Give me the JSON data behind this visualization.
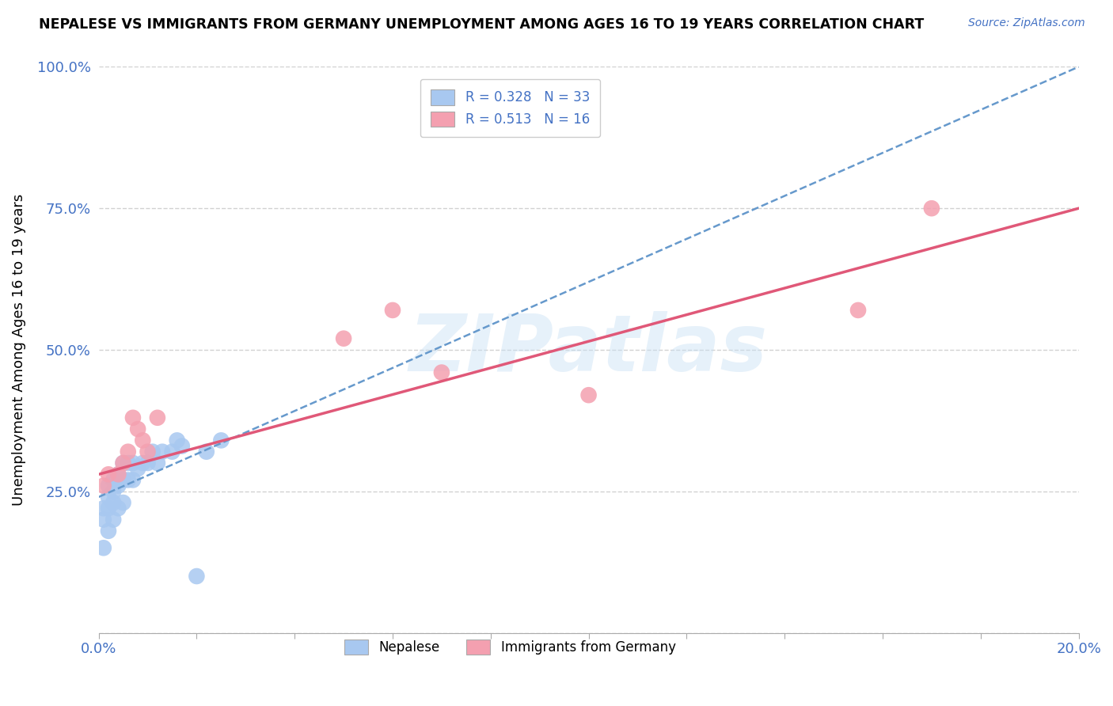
{
  "title": "NEPALESE VS IMMIGRANTS FROM GERMANY UNEMPLOYMENT AMONG AGES 16 TO 19 YEARS CORRELATION CHART",
  "source": "Source: ZipAtlas.com",
  "ylabel": "Unemployment Among Ages 16 to 19 years",
  "xlim": [
    0,
    0.2
  ],
  "ylim": [
    0,
    1.0
  ],
  "xticks": [
    0.0,
    0.02,
    0.04,
    0.06,
    0.08,
    0.1,
    0.12,
    0.14,
    0.16,
    0.18,
    0.2
  ],
  "yticks": [
    0.0,
    0.25,
    0.5,
    0.75,
    1.0
  ],
  "nepalese_color": "#a8c8f0",
  "germany_color": "#f4a0b0",
  "nepalese_line_color": "#6699cc",
  "germany_line_color": "#e05878",
  "nepalese_R": 0.328,
  "nepalese_N": 33,
  "germany_R": 0.513,
  "germany_N": 16,
  "background_color": "#ffffff",
  "grid_color": "#cccccc",
  "watermark": "ZIPatlas",
  "tick_color": "#4472c4",
  "nepalese_x": [
    0.001,
    0.001,
    0.001,
    0.002,
    0.002,
    0.002,
    0.002,
    0.003,
    0.003,
    0.003,
    0.003,
    0.004,
    0.004,
    0.004,
    0.005,
    0.005,
    0.005,
    0.006,
    0.006,
    0.007,
    0.007,
    0.008,
    0.009,
    0.01,
    0.011,
    0.012,
    0.013,
    0.015,
    0.016,
    0.017,
    0.02,
    0.022,
    0.025
  ],
  "nepalese_y": [
    0.15,
    0.2,
    0.22,
    0.18,
    0.22,
    0.24,
    0.26,
    0.2,
    0.23,
    0.25,
    0.27,
    0.22,
    0.26,
    0.28,
    0.23,
    0.27,
    0.3,
    0.27,
    0.3,
    0.27,
    0.3,
    0.29,
    0.3,
    0.3,
    0.32,
    0.3,
    0.32,
    0.32,
    0.34,
    0.33,
    0.1,
    0.32,
    0.34
  ],
  "germany_x": [
    0.001,
    0.002,
    0.004,
    0.005,
    0.006,
    0.007,
    0.008,
    0.009,
    0.01,
    0.012,
    0.05,
    0.06,
    0.07,
    0.1,
    0.155,
    0.17
  ],
  "germany_y": [
    0.26,
    0.28,
    0.28,
    0.3,
    0.32,
    0.38,
    0.36,
    0.34,
    0.32,
    0.38,
    0.52,
    0.57,
    0.46,
    0.42,
    0.57,
    0.75
  ],
  "nepalese_line_x0": 0.0,
  "nepalese_line_y0": 0.24,
  "nepalese_line_x1": 0.2,
  "nepalese_line_y1": 1.0,
  "germany_line_x0": 0.0,
  "germany_line_y0": 0.28,
  "germany_line_x1": 0.2,
  "germany_line_y1": 0.75
}
